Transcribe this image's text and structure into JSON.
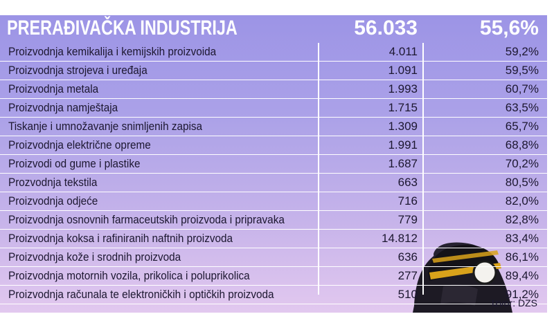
{
  "chart_data": {
    "type": "table",
    "title": "PRERAĐIVAČKA INDUSTRIJA",
    "total_value": "56.033",
    "total_share": "55,6%",
    "rows": [
      {
        "label": "Proizvodnja kemikalija i kemijskih proizvoida",
        "value": "4.011",
        "share": "59,2%"
      },
      {
        "label": "Proizvodnja strojeva i uređaja",
        "value": "1.091",
        "share": "59,5%"
      },
      {
        "label": "Proizvodnja metala",
        "value": "1.993",
        "share": "60,7%"
      },
      {
        "label": "Proizvodnja namještaja",
        "value": "1.715",
        "share": "63,5%"
      },
      {
        "label": "Tiskanje i umnožavanje snimljenih zapisa",
        "value": "1.309",
        "share": "65,7%"
      },
      {
        "label": "Proizvodnja električne opreme",
        "value": "1.991",
        "share": "68,8%"
      },
      {
        "label": "Proizvodi od gume i plastike",
        "value": "1.687",
        "share": "70,2%"
      },
      {
        "label": "Prozvodnja tekstila",
        "value": "663",
        "share": "80,5%"
      },
      {
        "label": "Proizvodnja odjeće",
        "value": "716",
        "share": "82,0%"
      },
      {
        "label": "Proizvodnja osnovnih farmaceutskih proizvoda i pripravaka",
        "value": "779",
        "share": "82,8%"
      },
      {
        "label": "Proizvodnja koksa i rafiniranih naftnih proizvoda",
        "value": "14.812",
        "share": "83,4%"
      },
      {
        "label": "Proizvodnja kože i srodnih proizvoda",
        "value": "636",
        "share": "86,1%"
      },
      {
        "label": "Proizvodnja motornih vozila, prikolica i poluprikolica",
        "value": "277",
        "share": "89,4%"
      },
      {
        "label": "Proizvodnja računala te elektroničkih i optičkih proizvoda",
        "value": "510",
        "share": "91,2%"
      }
    ],
    "source": "Izvor: DZS"
  },
  "illustration": {
    "icon": "miner-with-helmet-lamp-icon",
    "helmet_color": "#1a1a1a",
    "helmet_stripe_color": "#d9a21b",
    "lamp_color": "#f4f2ee"
  }
}
